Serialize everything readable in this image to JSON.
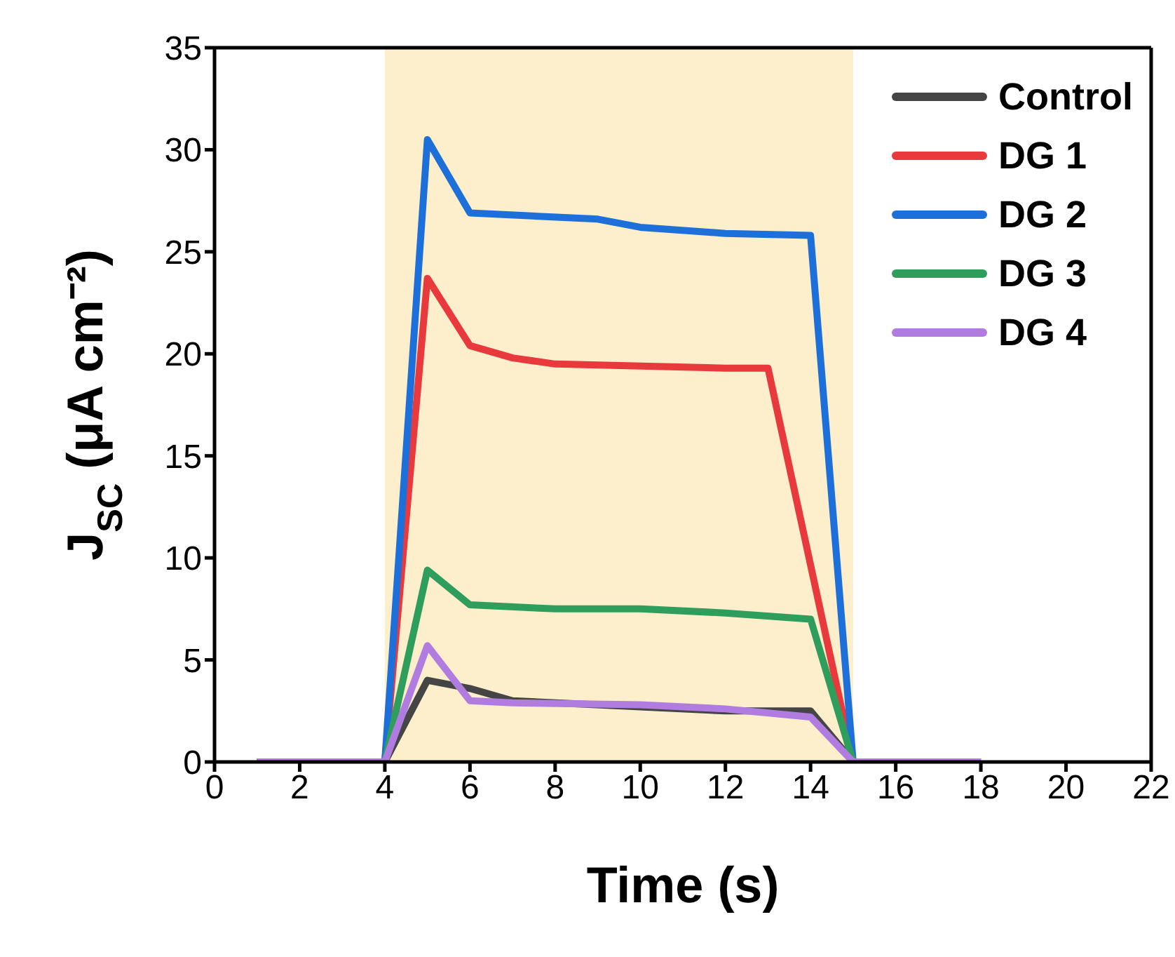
{
  "chart_data": {
    "type": "line",
    "xlabel": "Time (s)",
    "ylabel": "J$_{SC}$ (μA cm⁻²)",
    "xlim": [
      0,
      22
    ],
    "xticks": [
      0,
      2,
      4,
      6,
      8,
      10,
      12,
      14,
      16,
      18,
      20,
      22
    ],
    "ylim": [
      0,
      35
    ],
    "yticks": [
      0,
      5,
      10,
      15,
      20,
      25,
      30,
      35
    ],
    "legend": "top right",
    "marker": "none",
    "line_style": "solid",
    "bands": [
      {
        "axis": "x",
        "from": 4,
        "to": 15,
        "color": "#fdefcc"
      }
    ],
    "series": [
      {
        "name": "Control",
        "color": "#454545",
        "x": [
          1,
          4,
          5,
          6,
          7,
          10,
          12,
          14,
          15,
          18
        ],
        "values": [
          0,
          0,
          4.0,
          3.6,
          3.0,
          2.7,
          2.5,
          2.5,
          0,
          0
        ]
      },
      {
        "name": "DG 1",
        "color": "#e8393c",
        "x": [
          1,
          4,
          5,
          6,
          7,
          8,
          12,
          13,
          15,
          18
        ],
        "values": [
          0,
          0,
          23.7,
          20.4,
          19.8,
          19.5,
          19.3,
          19.3,
          0,
          0
        ]
      },
      {
        "name": "DG 2",
        "color": "#1d6fda",
        "x": [
          1,
          4,
          5,
          6,
          9,
          10,
          12,
          14,
          15,
          18
        ],
        "values": [
          0,
          0,
          30.5,
          26.9,
          26.6,
          26.2,
          25.9,
          25.8,
          0,
          0
        ]
      },
      {
        "name": "DG 3",
        "color": "#2f9e5c",
        "x": [
          1,
          4,
          5,
          6,
          8,
          10,
          12,
          14,
          15,
          18
        ],
        "values": [
          0,
          0,
          9.4,
          7.7,
          7.5,
          7.5,
          7.3,
          7.0,
          0,
          0
        ]
      },
      {
        "name": "DG 4",
        "color": "#b07ce0",
        "x": [
          1,
          4,
          5,
          6,
          7,
          10,
          12,
          14,
          15,
          18
        ],
        "values": [
          0,
          0,
          5.7,
          3.0,
          2.9,
          2.8,
          2.6,
          2.2,
          0,
          0
        ]
      }
    ]
  }
}
